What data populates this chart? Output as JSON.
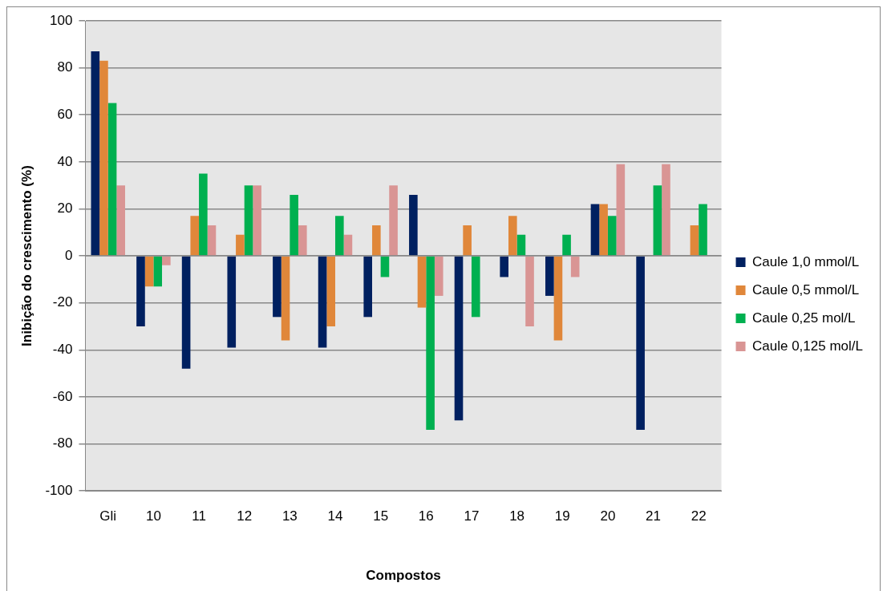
{
  "chart_data": {
    "type": "bar",
    "xlabel": "Compostos",
    "ylabel": "Inibição do crescimento (%)",
    "categories": [
      "Gli",
      "10",
      "11",
      "12",
      "13",
      "14",
      "15",
      "16",
      "17",
      "18",
      "19",
      "20",
      "21",
      "22"
    ],
    "series": [
      {
        "name": "Caule 1,0 mmol/L",
        "color": "#002060",
        "values": [
          87,
          -30,
          -48,
          -39,
          -26,
          -39,
          -26,
          26,
          -70,
          -9,
          -17,
          22,
          -74,
          null
        ]
      },
      {
        "name": "Caule 0,5 mmol/L",
        "color": "#e0873a",
        "values": [
          83,
          -13,
          17,
          9,
          -36,
          -30,
          13,
          -22,
          13,
          17,
          -36,
          22,
          null,
          13
        ]
      },
      {
        "name": "Caule 0,25 mol/L",
        "color": "#00b050",
        "values": [
          65,
          -13,
          35,
          30,
          26,
          17,
          -9,
          -74,
          -26,
          9,
          9,
          17,
          30,
          22
        ]
      },
      {
        "name": "Caule 0,125 mol/L",
        "color": "#d99594",
        "values": [
          30,
          -4,
          13,
          30,
          13,
          9,
          30,
          -17,
          null,
          -30,
          -9,
          39,
          39,
          null
        ]
      }
    ],
    "ylim": [
      -100,
      100
    ],
    "yticks": [
      -100,
      -80,
      -60,
      -40,
      -20,
      0,
      20,
      40,
      60,
      80,
      100
    ],
    "grid": "y",
    "legend": "right"
  }
}
